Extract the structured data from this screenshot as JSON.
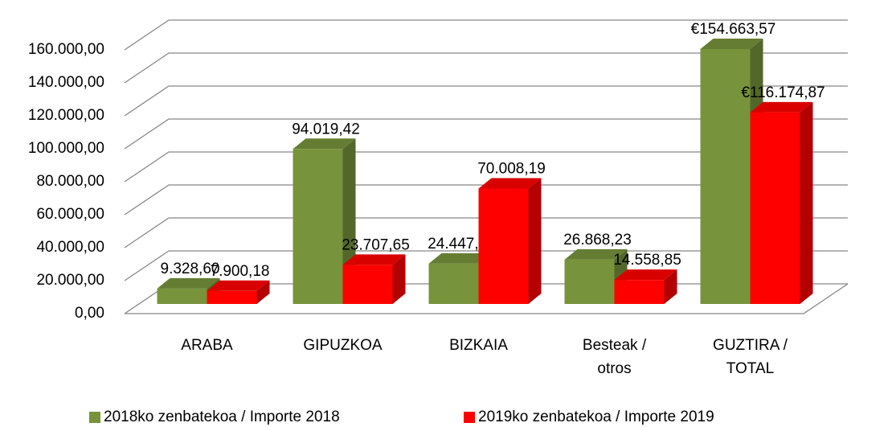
{
  "chart_data": {
    "type": "bar3d",
    "categories": [
      "ARABA",
      "GIPUZKOA",
      "BIZKAIA",
      "Besteak / otros",
      "GUZTIRA  / TOTAL"
    ],
    "series": [
      {
        "name": "2018ko zenbatekoa / Importe 2018",
        "color": "#77933c",
        "values": [
          9328.6,
          94019.42,
          24447.32,
          26868.23,
          154663.57
        ],
        "value_labels": [
          "9.328,60",
          "94.019,42",
          "24.447,32",
          "26.868,23",
          "€154.663,57"
        ]
      },
      {
        "name": "2019ko zenbatekoa / Importe 2019",
        "color": "#ff0000",
        "values": [
          7900.18,
          23707.65,
          70008.19,
          14558.85,
          116174.87
        ],
        "value_labels": [
          "7.900,18",
          "23.707,65",
          "70.008,19",
          "14.558,85",
          "€116.174,87"
        ]
      }
    ],
    "ylim": [
      0,
      160000
    ],
    "yticks": [
      {
        "value": 0,
        "label": "0,00"
      },
      {
        "value": 20000,
        "label": "20.000,00"
      },
      {
        "value": 40000,
        "label": "40.000,00"
      },
      {
        "value": 60000,
        "label": "60.000,00"
      },
      {
        "value": 80000,
        "label": "80.000,00"
      },
      {
        "value": 100000,
        "label": "100.000,00"
      },
      {
        "value": 120000,
        "label": "120.000,00"
      },
      {
        "value": 140000,
        "label": "140.000,00"
      },
      {
        "value": 160000,
        "label": "160.000,00"
      }
    ],
    "grid": true,
    "legend": "bottom"
  }
}
